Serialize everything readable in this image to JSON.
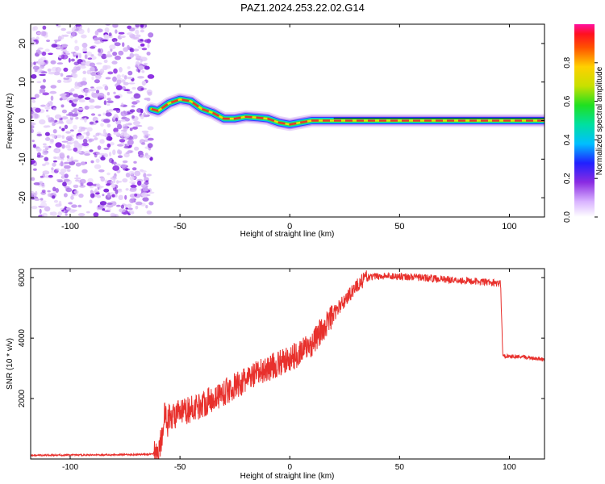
{
  "title": "PAZ1.2024.253.22.02.G14",
  "colors": {
    "snr_line": "#e8302c",
    "ridge_core": "#e23a2a",
    "speckle": "#8a2be2",
    "axis": "#000000"
  },
  "chart_data": [
    {
      "type": "heatmap",
      "xlabel": "Height of straight line (km)",
      "ylabel": "Frequency (Hz)",
      "xlim": [
        -118,
        116
      ],
      "ylim": [
        -25,
        25
      ],
      "xticks": [
        -100,
        -50,
        0,
        50,
        100
      ],
      "yticks": [
        -20,
        -10,
        0,
        10,
        20
      ],
      "noise_region_x": [
        -118,
        -63
      ],
      "ridge": {
        "x": [
          -63,
          -60,
          -55,
          -50,
          -45,
          -40,
          -35,
          -30,
          -25,
          -20,
          -15,
          -10,
          -5,
          0,
          5,
          10,
          20,
          40,
          60,
          80,
          100,
          116
        ],
        "y": [
          3,
          2.5,
          4.5,
          5.5,
          5,
          3,
          2,
          0.5,
          0.5,
          1,
          0.8,
          0.5,
          -0.5,
          -1,
          -0.5,
          0,
          0,
          0,
          0,
          0,
          0,
          0
        ]
      },
      "colorbar": {
        "label": "Normalized spectral amplitude",
        "range": [
          0,
          1
        ],
        "ticks": [
          0.0,
          0.2,
          0.4,
          0.6,
          0.8
        ]
      }
    },
    {
      "type": "line",
      "xlabel": "Height of straight line (km)",
      "ylabel": "SNR (10 * v/v)",
      "xlim": [
        -118,
        116
      ],
      "ylim": [
        0,
        6300
      ],
      "xticks": [
        -100,
        -50,
        0,
        50,
        100
      ],
      "yticks": [
        2000,
        4000,
        6000
      ],
      "series": [
        {
          "x": [
            -118,
            -100,
            -80,
            -65,
            -60,
            -58,
            -57,
            -56,
            -55,
            -50,
            -40,
            -30,
            -20,
            -10,
            0,
            10,
            20,
            30,
            35,
            40,
            50,
            60,
            70,
            80,
            90,
            96,
            97,
            98,
            100,
            110,
            116
          ],
          "y": [
            120,
            130,
            140,
            150,
            200,
            800,
            1800,
            1000,
            1400,
            1500,
            1800,
            2200,
            2600,
            3000,
            3300,
            3800,
            4800,
            5700,
            6000,
            6050,
            6050,
            6000,
            5950,
            5900,
            5850,
            5800,
            3450,
            3400,
            3400,
            3350,
            3300
          ]
        }
      ]
    }
  ]
}
